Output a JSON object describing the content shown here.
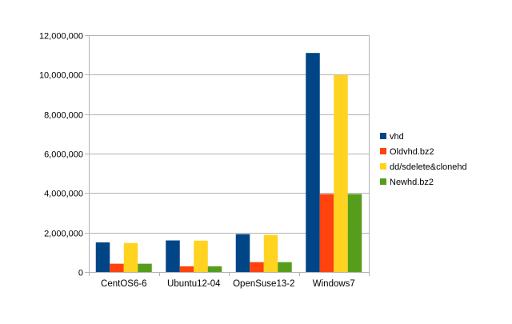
{
  "chart_data": {
    "type": "bar",
    "categories": [
      "CentOS6-6",
      "Ubuntu12-04",
      "OpenSuse13-2",
      "Windows7"
    ],
    "series": [
      {
        "name": "vhd",
        "color": "#004586",
        "values": [
          1500000,
          1600000,
          1920000,
          11100000
        ]
      },
      {
        "name": "Oldvhd.bz2",
        "color": "#ff420e",
        "values": [
          420000,
          290000,
          500000,
          3950000
        ]
      },
      {
        "name": "dd/sdelete&clonehd",
        "color": "#ffd320",
        "values": [
          1470000,
          1590000,
          1880000,
          9980000
        ]
      },
      {
        "name": "Newhd.bz2",
        "color": "#579d1c",
        "values": [
          420000,
          290000,
          500000,
          3950000
        ]
      }
    ],
    "yticks": [
      "0",
      "2,000,000",
      "4,000,000",
      "6,000,000",
      "8,000,000",
      "10,000,000",
      "12,000,000"
    ],
    "ylim": [
      0,
      12000000
    ],
    "grid": true,
    "legend": "right",
    "title": "",
    "xlabel": "",
    "ylabel": ""
  }
}
